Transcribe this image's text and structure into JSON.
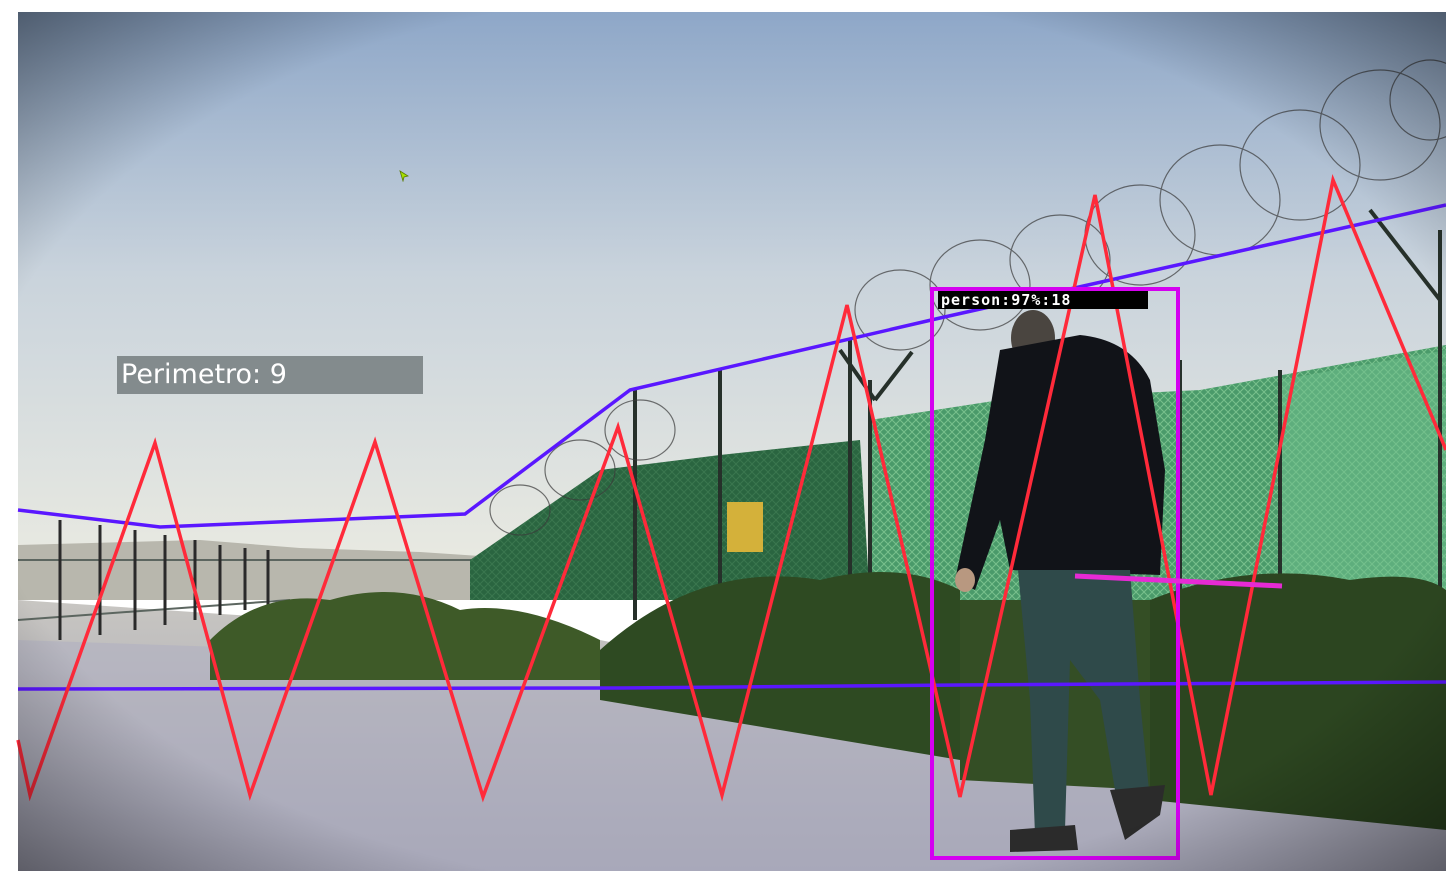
{
  "overlay": {
    "perimeter_label": "Perimetro: 9",
    "detection": {
      "label": "person:97%:18",
      "class": "person",
      "confidence": "97%",
      "track_id": "18"
    }
  },
  "colors": {
    "zigzag": "#ff2a3a",
    "boundary": "#5a17ff",
    "detection_box": "#d400f0",
    "label_bg": "#7a8284",
    "sky_top": "#8fa6c4",
    "sky_bottom": "#e6e9e4",
    "gravel": "#a8a8b4",
    "fence": "#2f6b46",
    "cursor": "#a8e000"
  },
  "icons": {
    "cursor": "mouse-pointer-icon"
  }
}
